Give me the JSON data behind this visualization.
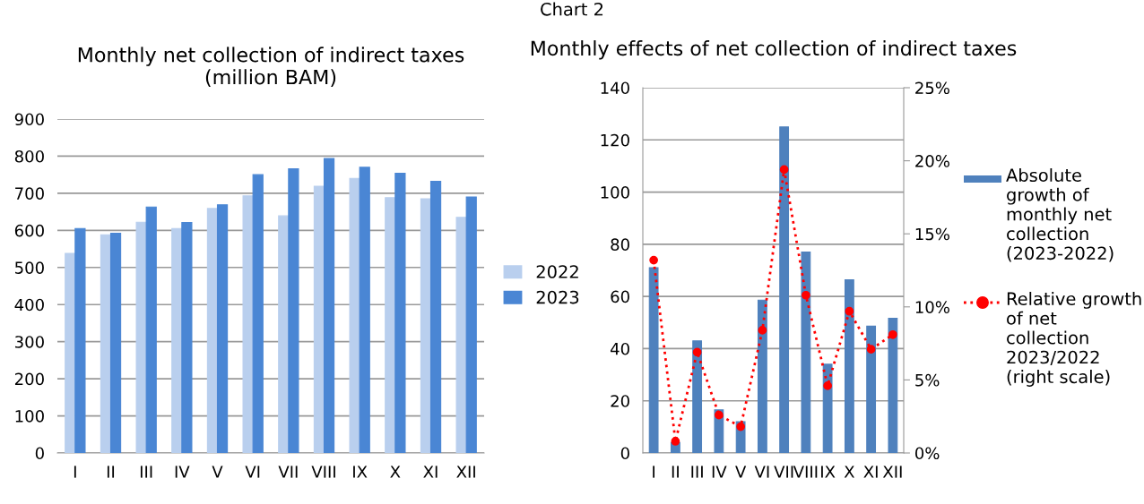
{
  "chart_data": [
    {
      "type": "bar",
      "title": "Monthly net collection of indirect taxes\n(million BAM)",
      "annotations": [
        "Chart 2"
      ],
      "categories": [
        "I",
        "II",
        "III",
        "IV",
        "V",
        "VI",
        "VII",
        "VIII",
        "IX",
        "X",
        "XI",
        "XII"
      ],
      "series": [
        {
          "name": "2022",
          "color": "#b9cfee",
          "values": [
            538,
            588,
            622,
            605,
            659,
            693,
            639,
            719,
            740,
            688,
            685,
            635
          ]
        },
        {
          "name": "2023",
          "color": "#4a86d4",
          "values": [
            605,
            592,
            663,
            621,
            669,
            750,
            766,
            794,
            770,
            754,
            732,
            690
          ]
        }
      ],
      "ylim": [
        0,
        900
      ],
      "yticks": [
        0,
        100,
        200,
        300,
        400,
        500,
        600,
        700,
        800,
        900
      ],
      "grid": "y",
      "legend": "right"
    },
    {
      "type": "bar",
      "title": "Monthly effects of net collection of indirect taxes",
      "categories": [
        "I",
        "II",
        "III",
        "IV",
        "V",
        "VI",
        "VII",
        "VIII",
        "IX",
        "X",
        "XI",
        "XII"
      ],
      "series": [
        {
          "name": "Absolute growth of monthly net collection (2023-2022)",
          "type": "bar",
          "color": "#4f81bd",
          "values": [
            71,
            4,
            43,
            16.5,
            12,
            58.6,
            125,
            77,
            34,
            66.4,
            48.6,
            51.6
          ]
        },
        {
          "name": "Relative growth of net collection 2023/2022 (right scale)",
          "type": "line",
          "axis": "y2",
          "color": "#ff0000",
          "marker": "circle",
          "line_style": "dotted",
          "values": [
            13.2,
            0.8,
            6.9,
            2.6,
            1.8,
            8.4,
            19.4,
            10.8,
            4.6,
            9.7,
            7.1,
            8.1
          ]
        }
      ],
      "ylim": [
        0,
        140
      ],
      "yticks": [
        0,
        20,
        40,
        60,
        80,
        100,
        120,
        140
      ],
      "y2lim": [
        0,
        25
      ],
      "y2ticks": [
        {
          "value": 0,
          "label": "0%"
        },
        {
          "value": 5,
          "label": "5%"
        },
        {
          "value": 10,
          "label": "10%"
        },
        {
          "value": 15,
          "label": "15%"
        },
        {
          "value": 20,
          "label": "20%"
        },
        {
          "value": 25,
          "label": "25%"
        }
      ],
      "grid": "y",
      "legend": "right"
    }
  ]
}
